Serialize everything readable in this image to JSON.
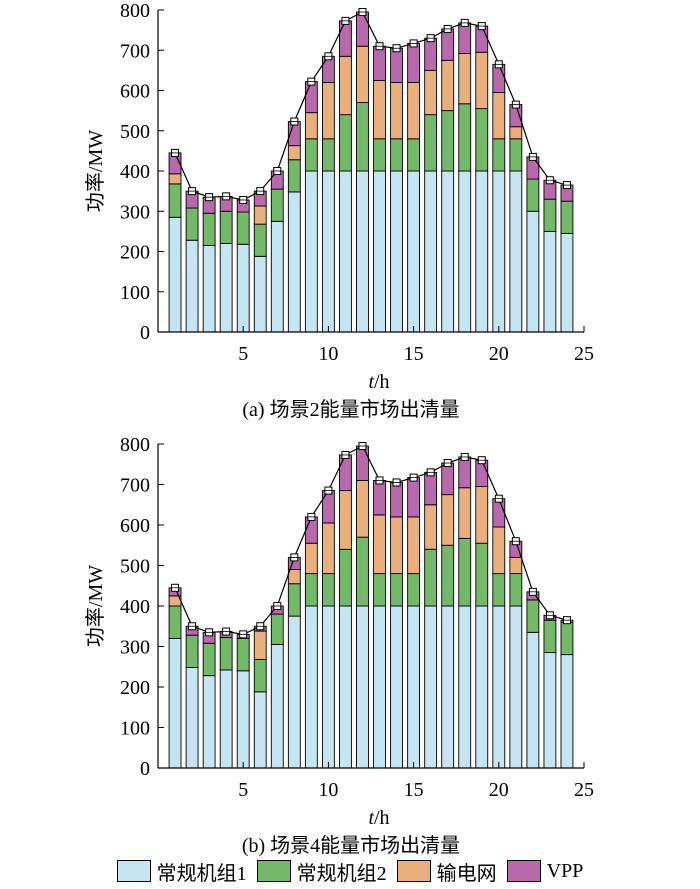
{
  "chart_data": [
    {
      "type": "stacked-bar-with-line",
      "caption": "(a)  场景2能量市场出清量",
      "xlabel_var": "t",
      "xlabel_unit": "/h",
      "ylabel": "功率/MW",
      "xlim": [
        0,
        25
      ],
      "ylim": [
        0,
        800
      ],
      "xticks": [
        5,
        10,
        15,
        20,
        25
      ],
      "yticks": [
        0,
        100,
        200,
        300,
        400,
        500,
        600,
        700,
        800
      ],
      "categories": [
        1,
        2,
        3,
        4,
        5,
        6,
        7,
        8,
        9,
        10,
        11,
        12,
        13,
        14,
        15,
        16,
        17,
        18,
        19,
        20,
        21,
        22,
        23,
        24
      ],
      "series": [
        {
          "name": "常规机组1",
          "values": [
            285,
            228,
            215,
            220,
            218,
            188,
            275,
            348,
            400,
            400,
            400,
            400,
            400,
            400,
            400,
            400,
            400,
            400,
            400,
            400,
            400,
            300,
            250,
            245
          ]
        },
        {
          "name": "常规机组2",
          "values": [
            83,
            80,
            80,
            80,
            80,
            80,
            80,
            80,
            80,
            80,
            140,
            170,
            80,
            80,
            80,
            140,
            150,
            167,
            155,
            80,
            80,
            80,
            80,
            80
          ]
        },
        {
          "name": "输电网",
          "values": [
            25,
            0,
            0,
            0,
            0,
            45,
            0,
            35,
            65,
            140,
            145,
            140,
            145,
            140,
            140,
            110,
            125,
            125,
            140,
            115,
            30,
            0,
            0,
            0
          ]
        },
        {
          "name": "VPP",
          "values": [
            52,
            42,
            40,
            37,
            30,
            37,
            45,
            60,
            77,
            65,
            88,
            85,
            85,
            85,
            97,
            80,
            78,
            76,
            65,
            70,
            55,
            55,
            47,
            40
          ]
        }
      ],
      "total": [
        445,
        350,
        335,
        337,
        328,
        350,
        400,
        523,
        622,
        685,
        773,
        795,
        710,
        705,
        717,
        730,
        753,
        768,
        760,
        665,
        565,
        435,
        377,
        365
      ]
    },
    {
      "type": "stacked-bar-with-line",
      "caption": "(b)  场景4能量市场出清量",
      "xlabel_var": "t",
      "xlabel_unit": "/h",
      "ylabel": "功率/MW",
      "xlim": [
        0,
        25
      ],
      "ylim": [
        0,
        800
      ],
      "xticks": [
        5,
        10,
        15,
        20,
        25
      ],
      "yticks": [
        0,
        100,
        200,
        300,
        400,
        500,
        600,
        700,
        800
      ],
      "categories": [
        1,
        2,
        3,
        4,
        5,
        6,
        7,
        8,
        9,
        10,
        11,
        12,
        13,
        14,
        15,
        16,
        17,
        18,
        19,
        20,
        21,
        22,
        23,
        24
      ],
      "series": [
        {
          "name": "常规机组1",
          "values": [
            320,
            248,
            228,
            242,
            240,
            188,
            305,
            375,
            400,
            400,
            400,
            400,
            400,
            400,
            400,
            400,
            400,
            400,
            400,
            400,
            400,
            335,
            285,
            280
          ]
        },
        {
          "name": "常规机组2",
          "values": [
            80,
            80,
            80,
            80,
            80,
            80,
            75,
            80,
            80,
            80,
            140,
            170,
            80,
            80,
            80,
            140,
            150,
            167,
            155,
            80,
            80,
            80,
            80,
            80
          ]
        },
        {
          "name": "输电网",
          "values": [
            25,
            0,
            0,
            0,
            0,
            70,
            0,
            35,
            75,
            125,
            145,
            140,
            145,
            140,
            140,
            110,
            125,
            125,
            140,
            115,
            40,
            0,
            0,
            0
          ]
        },
        {
          "name": "VPP",
          "values": [
            20,
            22,
            27,
            15,
            10,
            12,
            20,
            30,
            65,
            80,
            88,
            85,
            85,
            85,
            97,
            80,
            78,
            76,
            65,
            70,
            40,
            20,
            12,
            5
          ]
        }
      ],
      "total": [
        445,
        350,
        335,
        337,
        330,
        350,
        400,
        520,
        620,
        685,
        773,
        795,
        710,
        705,
        717,
        730,
        753,
        768,
        760,
        665,
        560,
        435,
        377,
        365
      ]
    }
  ],
  "legend": [
    {
      "label": "常规机组1",
      "color": "#c5e5f3"
    },
    {
      "label": "常规机组2",
      "color": "#74b86a"
    },
    {
      "label": "输电网",
      "color": "#e9b07e"
    },
    {
      "label": "VPP",
      "color": "#b769ac"
    }
  ]
}
